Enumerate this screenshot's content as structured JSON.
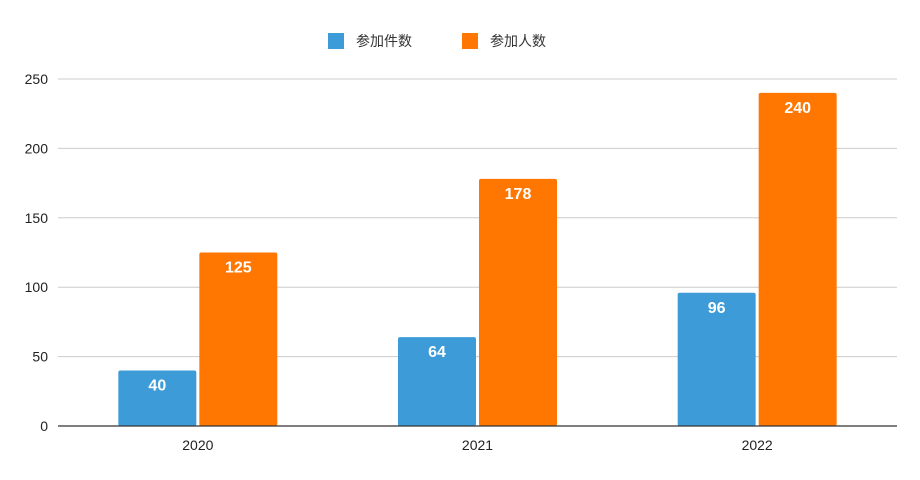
{
  "chart_data": {
    "type": "bar",
    "categories": [
      "2020",
      "2021",
      "2022"
    ],
    "series": [
      {
        "name": "参加件数",
        "color": "#3d9bd8",
        "values": [
          40,
          64,
          96
        ]
      },
      {
        "name": "参加人数",
        "color": "#ff7700",
        "values": [
          125,
          178,
          240
        ]
      }
    ],
    "title": "",
    "xlabel": "",
    "ylabel": "",
    "ylim": [
      0,
      250
    ],
    "yticks": [
      0,
      50,
      100,
      150,
      200,
      250
    ],
    "grid": true,
    "legend_position": "top-center"
  }
}
